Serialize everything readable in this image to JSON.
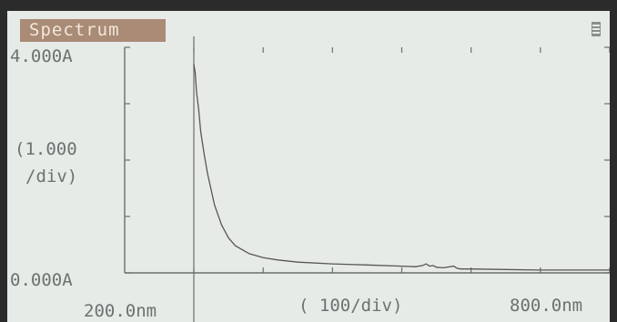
{
  "screen_title": "Spectrum",
  "chart_data": {
    "type": "line",
    "xlabel": "( 100/div)",
    "ylabel": "(1.000\n/div)",
    "x_tick_labels": [
      "200.0nm",
      "800.0nm"
    ],
    "y_tick_labels": [
      "4.000A",
      "0.000A"
    ],
    "xlim": [
      200,
      800
    ],
    "ylim": [
      0,
      4
    ],
    "grid": false,
    "colors": {
      "line": "#565656",
      "axis": "#6a6e6c",
      "title_bg": "#a98b76"
    },
    "series": [
      {
        "x": [
          200,
          202,
          204,
          207,
          210,
          215,
          220,
          230,
          240,
          250,
          260,
          280,
          300,
          320,
          350,
          400,
          450,
          500,
          520,
          530,
          535,
          540,
          545,
          550,
          560,
          575,
          580,
          585,
          600,
          650,
          700,
          750,
          800
        ],
        "y": [
          3.7,
          3.55,
          3.2,
          2.9,
          2.5,
          2.1,
          1.75,
          1.2,
          0.85,
          0.62,
          0.48,
          0.34,
          0.27,
          0.23,
          0.19,
          0.16,
          0.14,
          0.12,
          0.11,
          0.13,
          0.16,
          0.12,
          0.13,
          0.1,
          0.09,
          0.12,
          0.08,
          0.07,
          0.07,
          0.06,
          0.05,
          0.05,
          0.05
        ]
      }
    ]
  }
}
